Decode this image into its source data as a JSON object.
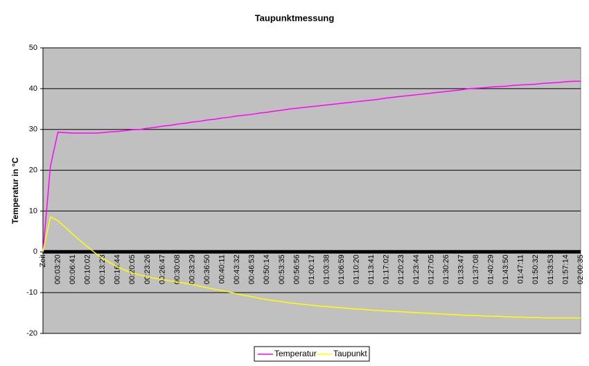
{
  "chart_data": {
    "type": "line",
    "title": "Taupunktmessung",
    "y_label": "Temperatur in °C",
    "categories": [
      "Zeit",
      null,
      "00:03:20",
      null,
      "00:06:41",
      null,
      "00:10:02",
      null,
      "00:13:23",
      null,
      "00:16:44",
      null,
      "00:20:05",
      null,
      "00:23:26",
      null,
      "00:26:47",
      null,
      "00:30:08",
      null,
      "00:33:29",
      null,
      "00:36:50",
      null,
      "00:40:11",
      null,
      "00:43:32",
      null,
      "00:46:53",
      null,
      "00:50:14",
      null,
      "00:53:35",
      null,
      "00:56:56",
      null,
      "01:00:17",
      null,
      "01:03:38",
      null,
      "01:06:59",
      null,
      "01:10:20",
      null,
      "01:13:41",
      null,
      "01:17:02",
      null,
      "01:20:23",
      null,
      "01:23:44",
      null,
      "01:27:05",
      null,
      "01:30:26",
      null,
      "01:33:47",
      null,
      "01:37:08",
      null,
      "01:40:29",
      null,
      "01:43:50",
      null,
      "01:47:11",
      null,
      "01:50:32",
      null,
      "01:53:53",
      null,
      "01:57:14",
      null,
      "02:00:35"
    ],
    "series": [
      {
        "name": "Temperatur",
        "color": "#ff00ff",
        "values": [
          0,
          21,
          29.3,
          29.2,
          29.1,
          29.1,
          29.1,
          29.1,
          29.2,
          29.4,
          29.5,
          29.7,
          29.9,
          30.0,
          30.3,
          30.5,
          30.8,
          31.0,
          31.3,
          31.5,
          31.8,
          32.0,
          32.3,
          32.5,
          32.8,
          33.0,
          33.3,
          33.5,
          33.7,
          34.0,
          34.2,
          34.5,
          34.7,
          35.0,
          35.2,
          35.4,
          35.6,
          35.8,
          36.0,
          36.2,
          36.4,
          36.6,
          36.8,
          37.0,
          37.2,
          37.4,
          37.7,
          37.9,
          38.1,
          38.3,
          38.5,
          38.7,
          38.9,
          39.1,
          39.3,
          39.5,
          39.7,
          40.0,
          40.1,
          40.2,
          40.4,
          40.5,
          40.6,
          40.8,
          40.9,
          41.0,
          41.1,
          41.3,
          41.4,
          41.5,
          41.7,
          41.8,
          41.8
        ]
      },
      {
        "name": "Taupunkt",
        "color": "#ffff00",
        "values": [
          0,
          8.6,
          7.6,
          6.0,
          4.3,
          2.7,
          1.2,
          -0.3,
          -1.6,
          -2.7,
          -3.7,
          -4.5,
          -5.2,
          -5.7,
          -6.1,
          -6.5,
          -6.8,
          -7.1,
          -7.4,
          -7.7,
          -8.0,
          -8.4,
          -8.8,
          -9.2,
          -9.5,
          -9.9,
          -10.3,
          -10.7,
          -11.0,
          -11.4,
          -11.7,
          -12.0,
          -12.2,
          -12.5,
          -12.7,
          -12.9,
          -13.1,
          -13.3,
          -13.4,
          -13.6,
          -13.7,
          -13.9,
          -14.0,
          -14.1,
          -14.3,
          -14.4,
          -14.5,
          -14.6,
          -14.7,
          -14.8,
          -14.9,
          -15.0,
          -15.1,
          -15.2,
          -15.3,
          -15.4,
          -15.5,
          -15.6,
          -15.6,
          -15.7,
          -15.8,
          -15.8,
          -15.9,
          -16.0,
          -16.0,
          -16.1,
          -16.1,
          -16.2,
          -16.2,
          -16.2,
          -16.2,
          -16.2,
          -16.2
        ]
      }
    ],
    "ylim": [
      -20,
      50
    ],
    "yticks": [
      -20,
      -10,
      0,
      10,
      20,
      30,
      40,
      50
    ],
    "grid": true,
    "legend": "bottom"
  }
}
